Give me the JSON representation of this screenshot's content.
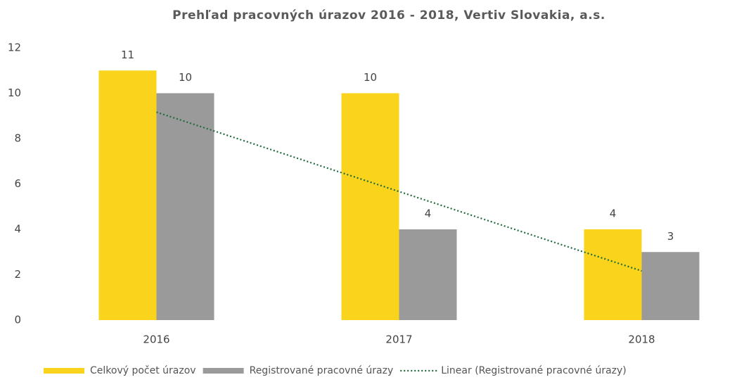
{
  "chart_data": {
    "type": "bar",
    "title": "Prehľad pracovných úrazov 2016 - 2018,  Vertiv Slovakia, a.s.",
    "categories": [
      "2016",
      "2017",
      "2018"
    ],
    "series": [
      {
        "name": "Celkový počet úrazov",
        "color": "#f9d31c",
        "values": [
          11,
          10,
          4
        ]
      },
      {
        "name": "Registrované pracovné úrazy",
        "color": "#9a9a9a",
        "values": [
          10,
          4,
          3
        ],
        "trendline": {
          "type": "linear",
          "name": "Linear (Registrované pracovné úrazy)",
          "color": "#1f6b3c"
        }
      }
    ],
    "ylim": [
      0,
      12
    ],
    "yticks": [
      0,
      2,
      4,
      6,
      8,
      10,
      12
    ],
    "grid": false,
    "data_labels": true,
    "legend": "bottom"
  }
}
